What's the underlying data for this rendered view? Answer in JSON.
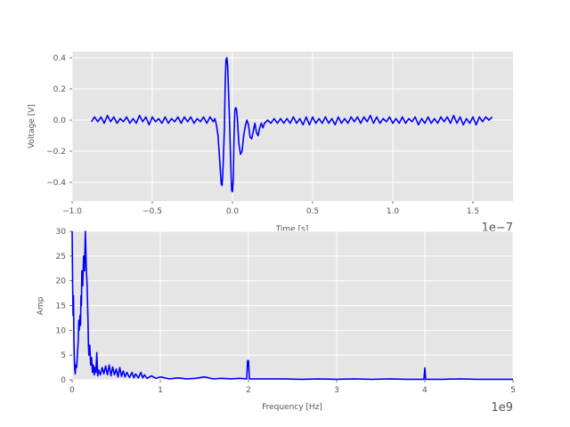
{
  "chart_data": [
    {
      "type": "line",
      "title": "",
      "xlabel": "Time [s]",
      "ylabel": "Voltage [V]",
      "x_offset_label": "1e−7",
      "xlim": [
        -1.0,
        1.75
      ],
      "ylim": [
        -0.52,
        0.44
      ],
      "xticks": [
        -1.0,
        -0.5,
        0.0,
        0.5,
        1.0,
        1.5
      ],
      "xtick_labels": [
        "−1.0",
        "−0.5",
        "0.0",
        "0.5",
        "1.0",
        "1.5"
      ],
      "yticks": [
        -0.4,
        -0.2,
        0.0,
        0.2,
        0.4
      ],
      "ytick_labels": [
        "−0.4",
        "−0.2",
        "0.0",
        "0.2",
        "0.4"
      ],
      "grid": true,
      "series": [
        {
          "color": "#0000ff",
          "points": [
            [
              -0.88,
              -0.01
            ],
            [
              -0.86,
              0.02
            ],
            [
              -0.84,
              -0.01
            ],
            [
              -0.82,
              0.02
            ],
            [
              -0.8,
              -0.02
            ],
            [
              -0.78,
              0.03
            ],
            [
              -0.76,
              -0.01
            ],
            [
              -0.74,
              0.02
            ],
            [
              -0.72,
              -0.02
            ],
            [
              -0.7,
              0.01
            ],
            [
              -0.68,
              -0.01
            ],
            [
              -0.66,
              0.02
            ],
            [
              -0.64,
              -0.02
            ],
            [
              -0.62,
              0.01
            ],
            [
              -0.6,
              -0.02
            ],
            [
              -0.58,
              0.03
            ],
            [
              -0.56,
              -0.01
            ],
            [
              -0.54,
              0.02
            ],
            [
              -0.52,
              -0.03
            ],
            [
              -0.5,
              0.02
            ],
            [
              -0.48,
              -0.01
            ],
            [
              -0.46,
              0.01
            ],
            [
              -0.44,
              -0.02
            ],
            [
              -0.42,
              0.02
            ],
            [
              -0.4,
              -0.02
            ],
            [
              -0.38,
              0.01
            ],
            [
              -0.36,
              -0.01
            ],
            [
              -0.34,
              0.02
            ],
            [
              -0.32,
              -0.02
            ],
            [
              -0.3,
              0.02
            ],
            [
              -0.28,
              -0.01
            ],
            [
              -0.26,
              0.02
            ],
            [
              -0.24,
              -0.02
            ],
            [
              -0.22,
              0.01
            ],
            [
              -0.2,
              -0.01
            ],
            [
              -0.18,
              0.02
            ],
            [
              -0.16,
              -0.02
            ],
            [
              -0.14,
              0.02
            ],
            [
              -0.12,
              -0.01
            ],
            [
              -0.11,
              0.01
            ],
            [
              -0.1,
              -0.03
            ],
            [
              -0.09,
              -0.1
            ],
            [
              -0.08,
              -0.25
            ],
            [
              -0.07,
              -0.41
            ],
            [
              -0.065,
              -0.42
            ],
            [
              -0.06,
              -0.34
            ],
            [
              -0.05,
              -0.05
            ],
            [
              -0.045,
              0.25
            ],
            [
              -0.04,
              0.39
            ],
            [
              -0.035,
              0.4
            ],
            [
              -0.03,
              0.35
            ],
            [
              -0.02,
              0.05
            ],
            [
              -0.01,
              -0.3
            ],
            [
              -0.005,
              -0.45
            ],
            [
              0.0,
              -0.46
            ],
            [
              0.005,
              -0.38
            ],
            [
              0.01,
              -0.1
            ],
            [
              0.015,
              0.06
            ],
            [
              0.02,
              0.08
            ],
            [
              0.025,
              0.07
            ],
            [
              0.03,
              0.02
            ],
            [
              0.04,
              -0.15
            ],
            [
              0.05,
              -0.22
            ],
            [
              0.06,
              -0.2
            ],
            [
              0.07,
              -0.1
            ],
            [
              0.08,
              -0.04
            ],
            [
              0.09,
              0.0
            ],
            [
              0.1,
              -0.03
            ],
            [
              0.11,
              -0.11
            ],
            [
              0.12,
              -0.12
            ],
            [
              0.13,
              -0.07
            ],
            [
              0.14,
              -0.02
            ],
            [
              0.15,
              -0.08
            ],
            [
              0.16,
              -0.1
            ],
            [
              0.17,
              -0.05
            ],
            [
              0.18,
              -0.02
            ],
            [
              0.19,
              -0.05
            ],
            [
              0.2,
              -0.02
            ],
            [
              0.22,
              0.0
            ],
            [
              0.24,
              -0.02
            ],
            [
              0.26,
              0.01
            ],
            [
              0.28,
              -0.02
            ],
            [
              0.3,
              0.01
            ],
            [
              0.32,
              -0.02
            ],
            [
              0.34,
              0.01
            ],
            [
              0.36,
              -0.02
            ],
            [
              0.38,
              0.02
            ],
            [
              0.4,
              -0.02
            ],
            [
              0.42,
              0.01
            ],
            [
              0.44,
              -0.03
            ],
            [
              0.46,
              0.02
            ],
            [
              0.48,
              -0.03
            ],
            [
              0.5,
              0.02
            ],
            [
              0.52,
              -0.02
            ],
            [
              0.54,
              0.01
            ],
            [
              0.56,
              -0.02
            ],
            [
              0.58,
              0.02
            ],
            [
              0.6,
              -0.02
            ],
            [
              0.62,
              0.01
            ],
            [
              0.64,
              -0.03
            ],
            [
              0.66,
              0.02
            ],
            [
              0.68,
              -0.02
            ],
            [
              0.7,
              0.01
            ],
            [
              0.72,
              -0.02
            ],
            [
              0.74,
              0.02
            ],
            [
              0.76,
              -0.01
            ],
            [
              0.78,
              0.02
            ],
            [
              0.8,
              -0.02
            ],
            [
              0.82,
              0.02
            ],
            [
              0.84,
              -0.01
            ],
            [
              0.86,
              0.03
            ],
            [
              0.88,
              -0.02
            ],
            [
              0.9,
              0.02
            ],
            [
              0.92,
              -0.02
            ],
            [
              0.94,
              0.01
            ],
            [
              0.96,
              -0.01
            ],
            [
              0.98,
              0.02
            ],
            [
              1.0,
              -0.02
            ],
            [
              1.02,
              0.01
            ],
            [
              1.04,
              -0.02
            ],
            [
              1.06,
              0.02
            ],
            [
              1.08,
              -0.02
            ],
            [
              1.1,
              0.01
            ],
            [
              1.12,
              -0.01
            ],
            [
              1.14,
              0.02
            ],
            [
              1.16,
              -0.03
            ],
            [
              1.18,
              0.01
            ],
            [
              1.2,
              -0.02
            ],
            [
              1.22,
              0.02
            ],
            [
              1.24,
              -0.02
            ],
            [
              1.26,
              0.01
            ],
            [
              1.28,
              -0.02
            ],
            [
              1.3,
              0.02
            ],
            [
              1.32,
              -0.01
            ],
            [
              1.34,
              0.02
            ],
            [
              1.36,
              -0.02
            ],
            [
              1.38,
              0.03
            ],
            [
              1.4,
              -0.02
            ],
            [
              1.42,
              0.02
            ],
            [
              1.44,
              -0.03
            ],
            [
              1.46,
              0.01
            ],
            [
              1.48,
              -0.02
            ],
            [
              1.5,
              0.02
            ],
            [
              1.52,
              -0.03
            ],
            [
              1.54,
              0.02
            ],
            [
              1.56,
              -0.01
            ],
            [
              1.58,
              0.02
            ],
            [
              1.6,
              0.0
            ],
            [
              1.62,
              0.02
            ]
          ]
        }
      ]
    },
    {
      "type": "line",
      "title": "",
      "xlabel": "Frequency [Hz]",
      "ylabel": "Amp",
      "x_offset_label": "1e9",
      "xlim": [
        0,
        5
      ],
      "ylim": [
        0,
        30
      ],
      "xticks": [
        0,
        1,
        2,
        3,
        4,
        5
      ],
      "xtick_labels": [
        "0",
        "1",
        "2",
        "3",
        "4",
        "5"
      ],
      "yticks": [
        0,
        5,
        10,
        15,
        20,
        25,
        30
      ],
      "ytick_labels": [
        "0",
        "5",
        "10",
        "15",
        "20",
        "25",
        "30"
      ],
      "grid": true,
      "series": [
        {
          "color": "#0000ff",
          "points": [
            [
              0.0,
              30
            ],
            [
              0.005,
              20
            ],
            [
              0.01,
              13
            ],
            [
              0.015,
              17
            ],
            [
              0.02,
              8
            ],
            [
              0.025,
              4
            ],
            [
              0.03,
              2
            ],
            [
              0.035,
              1.2
            ],
            [
              0.04,
              3
            ],
            [
              0.05,
              2.5
            ],
            [
              0.06,
              5
            ],
            [
              0.07,
              8
            ],
            [
              0.075,
              12
            ],
            [
              0.08,
              10
            ],
            [
              0.09,
              13
            ],
            [
              0.095,
              11
            ],
            [
              0.1,
              17
            ],
            [
              0.105,
              15
            ],
            [
              0.11,
              22
            ],
            [
              0.12,
              19
            ],
            [
              0.13,
              25
            ],
            [
              0.14,
              22
            ],
            [
              0.15,
              30
            ],
            [
              0.155,
              27
            ],
            [
              0.16,
              23
            ],
            [
              0.17,
              19
            ],
            [
              0.18,
              12
            ],
            [
              0.185,
              7
            ],
            [
              0.19,
              5
            ],
            [
              0.2,
              7
            ],
            [
              0.21,
              3
            ],
            [
              0.22,
              4.5
            ],
            [
              0.23,
              1.5
            ],
            [
              0.24,
              3
            ],
            [
              0.25,
              1
            ],
            [
              0.26,
              2.5
            ],
            [
              0.27,
              1.5
            ],
            [
              0.28,
              5.5
            ],
            [
              0.29,
              0.8
            ],
            [
              0.3,
              2
            ],
            [
              0.32,
              1
            ],
            [
              0.34,
              2.5
            ],
            [
              0.36,
              1.2
            ],
            [
              0.38,
              2.8
            ],
            [
              0.4,
              1
            ],
            [
              0.42,
              3
            ],
            [
              0.44,
              0.8
            ],
            [
              0.46,
              2.6
            ],
            [
              0.48,
              1
            ],
            [
              0.5,
              2.2
            ],
            [
              0.52,
              0.6
            ],
            [
              0.54,
              2.5
            ],
            [
              0.56,
              0.7
            ],
            [
              0.58,
              1.8
            ],
            [
              0.6,
              0.6
            ],
            [
              0.62,
              1.5
            ],
            [
              0.65,
              0.5
            ],
            [
              0.68,
              1.5
            ],
            [
              0.7,
              0.4
            ],
            [
              0.72,
              1.2
            ],
            [
              0.75,
              0.4
            ],
            [
              0.78,
              1.5
            ],
            [
              0.8,
              0.4
            ],
            [
              0.82,
              1
            ],
            [
              0.85,
              0.3
            ],
            [
              0.9,
              0.8
            ],
            [
              0.95,
              0.3
            ],
            [
              1.0,
              0.6
            ],
            [
              1.1,
              0.2
            ],
            [
              1.2,
              0.4
            ],
            [
              1.3,
              0.2
            ],
            [
              1.4,
              0.3
            ],
            [
              1.5,
              0.6
            ],
            [
              1.6,
              0.2
            ],
            [
              1.7,
              0.3
            ],
            [
              1.8,
              0.2
            ],
            [
              1.9,
              0.3
            ],
            [
              1.98,
              0.2
            ],
            [
              1.99,
              3.9
            ],
            [
              2.0,
              3.9
            ],
            [
              2.01,
              0.2
            ],
            [
              2.2,
              0.2
            ],
            [
              2.4,
              0.2
            ],
            [
              2.6,
              0.1
            ],
            [
              2.8,
              0.2
            ],
            [
              3.0,
              0.1
            ],
            [
              3.2,
              0.2
            ],
            [
              3.4,
              0.1
            ],
            [
              3.6,
              0.2
            ],
            [
              3.8,
              0.1
            ],
            [
              3.99,
              0.1
            ],
            [
              4.0,
              2.4
            ],
            [
              4.01,
              0.1
            ],
            [
              4.2,
              0.1
            ],
            [
              4.4,
              0.2
            ],
            [
              4.6,
              0.1
            ],
            [
              4.8,
              0.1
            ],
            [
              5.0,
              0.1
            ]
          ]
        }
      ]
    }
  ]
}
